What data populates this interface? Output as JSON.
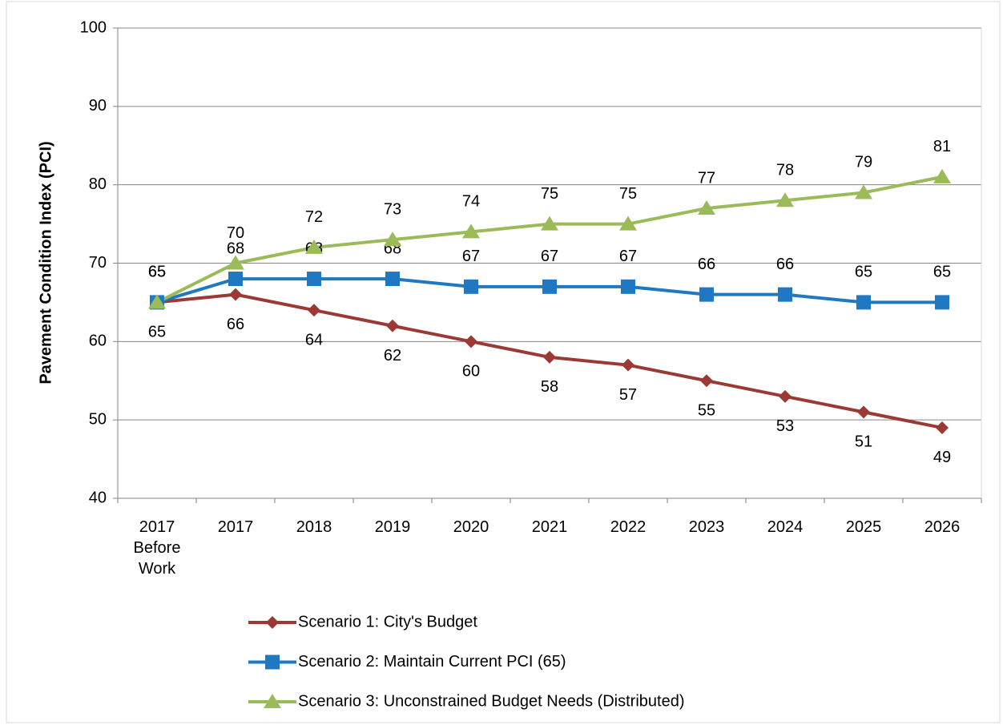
{
  "chart_data": {
    "type": "line",
    "ylabel": "Pavement Condition Index (PCI)",
    "categories": [
      "2017 Before Work",
      "2017",
      "2018",
      "2019",
      "2020",
      "2021",
      "2022",
      "2023",
      "2024",
      "2025",
      "2026"
    ],
    "series": [
      {
        "name": "Scenario 1: City's Budget",
        "color": "#9b3a35",
        "marker": "diamond",
        "label_position": "below",
        "values": [
          65,
          66,
          64,
          62,
          60,
          58,
          57,
          55,
          53,
          51,
          49
        ]
      },
      {
        "name": "Scenario 2: Maintain Current PCI (65)",
        "color": "#1f78c1",
        "marker": "square",
        "label_position": "above",
        "values": [
          65,
          68,
          68,
          68,
          67,
          67,
          67,
          66,
          66,
          65,
          65
        ]
      },
      {
        "name": "Scenario 3: Unconstrained Budget Needs (Distributed)",
        "color": "#9bbb59",
        "marker": "triangle",
        "label_position": "above",
        "values": [
          65,
          70,
          72,
          73,
          74,
          75,
          75,
          77,
          78,
          79,
          81
        ]
      }
    ],
    "ylim": [
      40,
      100
    ],
    "yticks": [
      40,
      50,
      60,
      70,
      80,
      90,
      100
    ],
    "grid": true,
    "legend": "bottom"
  }
}
